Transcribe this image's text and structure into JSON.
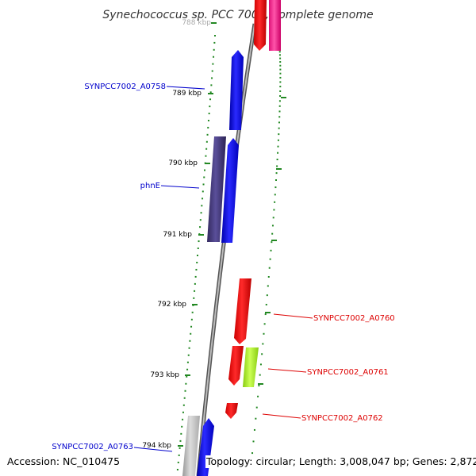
{
  "title": "Synechococcus sp. PCC 7002, complete genome",
  "footer": {
    "accession": "Accession: NC_010475",
    "topology": "Topology: circular; Length: 3,008,047 bp; Genes: 2,872"
  },
  "ticks": [
    "788 kbp",
    "789 kbp",
    "790 kbp",
    "791 kbp",
    "792 kbp",
    "793 kbp",
    "794 kbp"
  ],
  "gene_labels": [
    {
      "text": "SYNPCC7002_A0758",
      "color": "#0000cc"
    },
    {
      "text": "phnE",
      "color": "#0000cc"
    },
    {
      "text": "SYNPCC7002_A0760",
      "color": "#dd0000"
    },
    {
      "text": "SYNPCC7002_A0761",
      "color": "#dd0000"
    },
    {
      "text": "SYNPCC7002_A0762",
      "color": "#dd0000"
    },
    {
      "text": "SYNPCC7002_A0763",
      "color": "#0000cc"
    }
  ],
  "colors": {
    "backbone": "#888888",
    "tick": "#228822",
    "forward_gene": "#0000ee",
    "reverse_gene": "#ee0000",
    "phn_gene": "#4a3f8a",
    "magenta_gene": "#ee2288",
    "lime_gene": "#aaee33",
    "gray_gene": "#bbbbbb"
  }
}
